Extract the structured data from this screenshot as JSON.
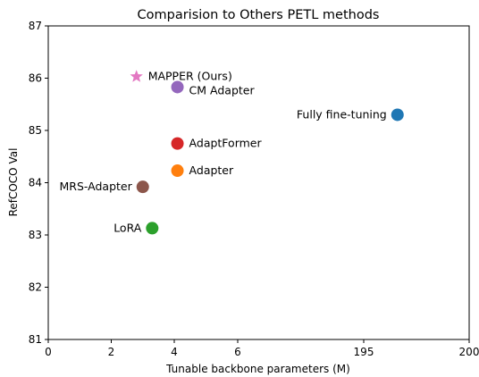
{
  "chart_data": {
    "type": "scatter",
    "title": "Comparision to Others PETL methods",
    "xlabel": "Tunable backbone parameters (M)",
    "ylabel": "RefCOCO Val",
    "x_scale": "broken",
    "x_ticks": [
      "0",
      "2",
      "4",
      "6",
      "195",
      "200"
    ],
    "y_ticks": [
      "81",
      "82",
      "83",
      "84",
      "85",
      "86",
      "87"
    ],
    "ylim": [
      81,
      87
    ],
    "grid": false,
    "legend": "none",
    "points": [
      {
        "label": "MAPPER (Ours)",
        "x": 2.8,
        "y": 86.03,
        "marker": "star",
        "color": "#e377c2"
      },
      {
        "label": "CM Adapter",
        "x": 4.1,
        "y": 85.83,
        "marker": "circle",
        "color": "#9467bd"
      },
      {
        "label": "Fully fine-tuning",
        "x": 196.6,
        "y": 85.3,
        "marker": "circle",
        "color": "#1f77b4"
      },
      {
        "label": "AdaptFormer",
        "x": 4.1,
        "y": 84.75,
        "marker": "circle",
        "color": "#d62728"
      },
      {
        "label": "Adapter",
        "x": 4.1,
        "y": 84.23,
        "marker": "circle",
        "color": "#ff7f0e"
      },
      {
        "label": "MRS-Adapter",
        "x": 3.0,
        "y": 83.92,
        "marker": "circle",
        "color": "#8c564b"
      },
      {
        "label": "LoRA",
        "x": 3.3,
        "y": 83.13,
        "marker": "circle",
        "color": "#2ca02c"
      }
    ]
  }
}
